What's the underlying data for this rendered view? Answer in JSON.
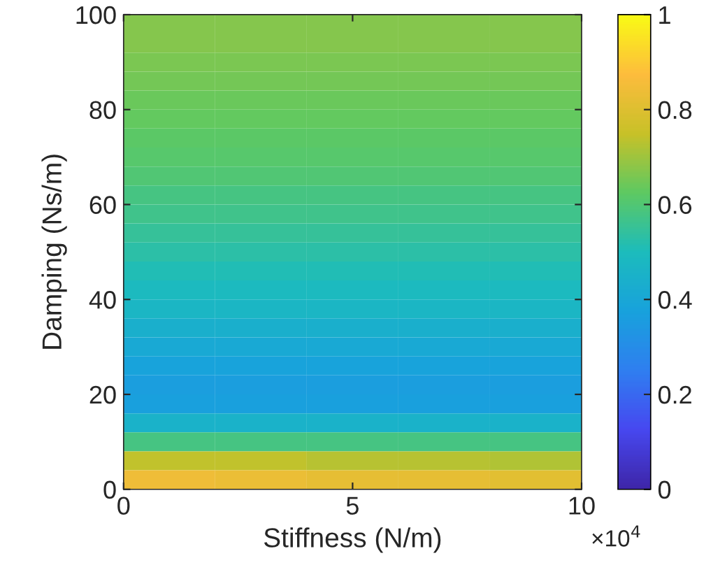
{
  "chart_data": {
    "type": "heatmap",
    "xlabel": "Stiffness (N/m)",
    "ylabel": "Damping (Ns/m)",
    "x": [
      1,
      3,
      5,
      7,
      9
    ],
    "y": [
      98,
      94,
      90,
      86,
      82,
      78,
      74,
      70,
      66,
      62,
      58,
      54,
      50,
      46,
      42,
      38,
      34,
      30,
      26,
      22,
      18,
      14,
      10,
      6,
      2
    ],
    "cells": [
      [
        0.67,
        0.67,
        0.67,
        0.67,
        0.67
      ],
      [
        0.67,
        0.67,
        0.67,
        0.67,
        0.67
      ],
      [
        0.66,
        0.66,
        0.66,
        0.66,
        0.66
      ],
      [
        0.65,
        0.65,
        0.65,
        0.65,
        0.65
      ],
      [
        0.64,
        0.64,
        0.64,
        0.64,
        0.64
      ],
      [
        0.63,
        0.63,
        0.63,
        0.63,
        0.63
      ],
      [
        0.62,
        0.62,
        0.62,
        0.62,
        0.62
      ],
      [
        0.61,
        0.61,
        0.61,
        0.61,
        0.61
      ],
      [
        0.6,
        0.6,
        0.6,
        0.6,
        0.6
      ],
      [
        0.58,
        0.58,
        0.58,
        0.58,
        0.58
      ],
      [
        0.57,
        0.57,
        0.57,
        0.57,
        0.57
      ],
      [
        0.55,
        0.55,
        0.55,
        0.55,
        0.55
      ],
      [
        0.53,
        0.53,
        0.53,
        0.53,
        0.53
      ],
      [
        0.51,
        0.51,
        0.51,
        0.51,
        0.51
      ],
      [
        0.49,
        0.49,
        0.49,
        0.49,
        0.49
      ],
      [
        0.47,
        0.47,
        0.47,
        0.47,
        0.47
      ],
      [
        0.44,
        0.44,
        0.44,
        0.44,
        0.44
      ],
      [
        0.41,
        0.41,
        0.41,
        0.41,
        0.41
      ],
      [
        0.38,
        0.38,
        0.38,
        0.38,
        0.38
      ],
      [
        0.36,
        0.36,
        0.36,
        0.36,
        0.36
      ],
      [
        0.37,
        0.37,
        0.37,
        0.37,
        0.37
      ],
      [
        0.45,
        0.45,
        0.45,
        0.45,
        0.45
      ],
      [
        0.58,
        0.58,
        0.58,
        0.58,
        0.58
      ],
      [
        0.74,
        0.74,
        0.73,
        0.73,
        0.72
      ],
      [
        0.84,
        0.83,
        0.82,
        0.82,
        0.81
      ]
    ],
    "xlim": [
      0,
      10
    ],
    "xticks": [
      0,
      5,
      10
    ],
    "ylim": [
      0,
      100
    ],
    "yticks": [
      0,
      20,
      40,
      60,
      80,
      100
    ],
    "clim": [
      0,
      1
    ],
    "cticks": [
      0,
      0.2,
      0.4,
      0.6,
      0.8,
      1
    ],
    "annotations": [
      "×10$^{4}$"
    ]
  }
}
